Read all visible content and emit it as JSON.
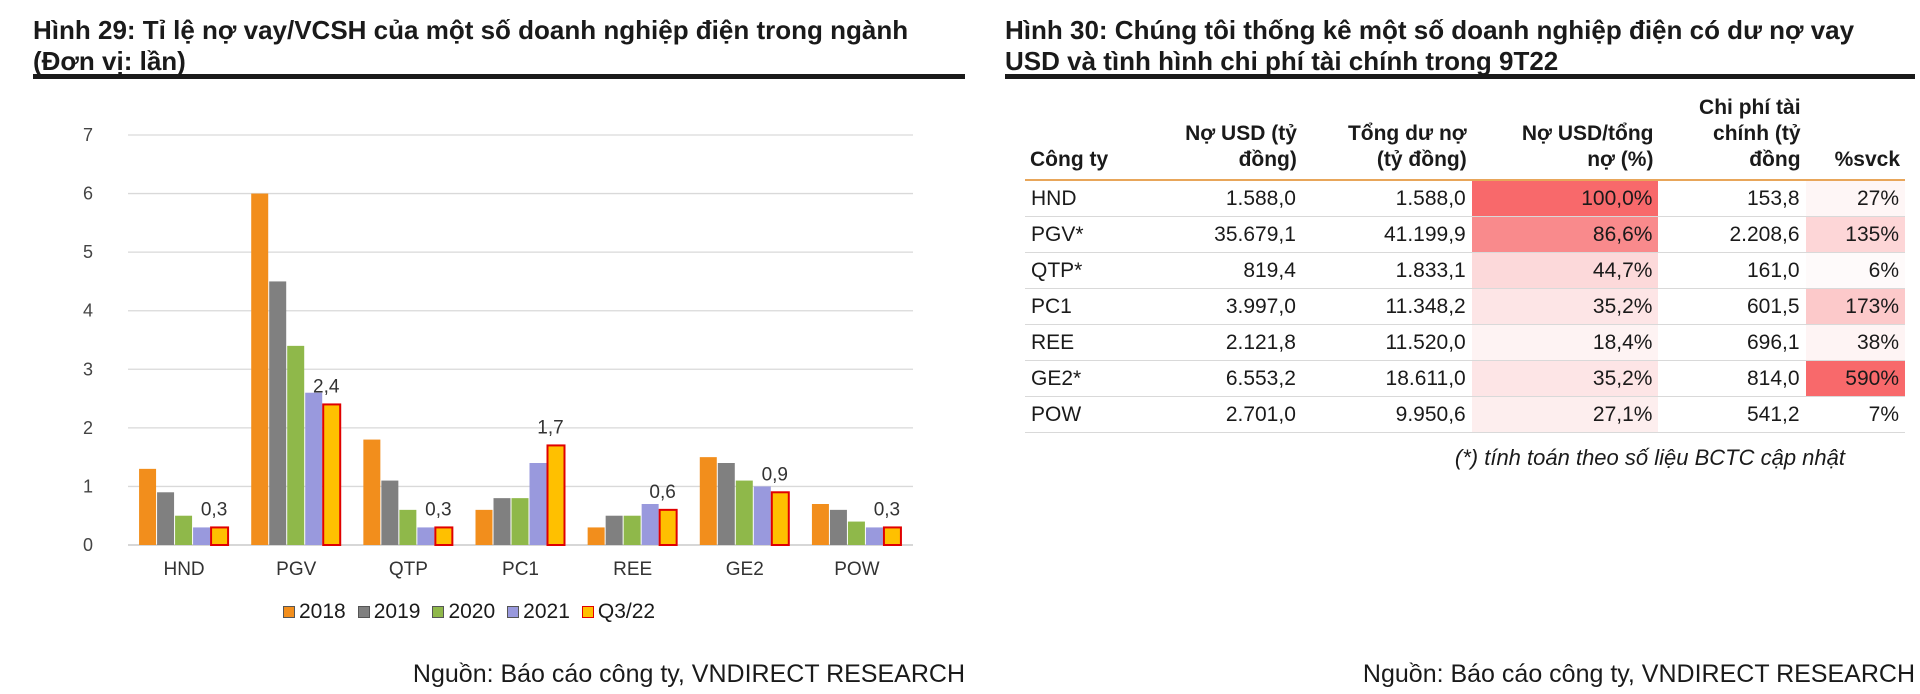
{
  "figure29": {
    "title_line1": "Hình 29: Tỉ lệ nợ vay/VCSH của một số doanh nghiệp điện trong ngành",
    "title_line2": "(Đơn vị: lần)",
    "source": "Nguồn: Báo cáo công ty, VNDIRECT RESEARCH"
  },
  "figure30": {
    "title_line1": "Hình 30: Chúng tôi thống kê một số doanh nghiệp điện có dư nợ vay",
    "title_line2": "USD và tình hình chi phí tài chính trong 9T22",
    "headers": {
      "company": "Công ty",
      "usd_debt_1": "Nợ USD (tỷ",
      "usd_debt_2": "đồng)",
      "total_debt_1": "Tổng dư nợ",
      "total_debt_2": "(tỷ đồng)",
      "ratio_1": "Nợ USD/tổng",
      "ratio_2": "nợ (%)",
      "fin_cost_1": "Chi phí tài",
      "fin_cost_2": "chính (tỷ",
      "fin_cost_3": "đồng",
      "yoy": "%svck"
    },
    "rows": [
      {
        "company": "HND",
        "usd_debt": "1.588,0",
        "total_debt": "1.588,0",
        "ratio": "100,0%",
        "fin_cost": "153,8",
        "yoy": "27%"
      },
      {
        "company": "PGV*",
        "usd_debt": "35.679,1",
        "total_debt": "41.199,9",
        "ratio": "86,6%",
        "fin_cost": "2.208,6",
        "yoy": "135%"
      },
      {
        "company": "QTP*",
        "usd_debt": "819,4",
        "total_debt": "1.833,1",
        "ratio": "44,7%",
        "fin_cost": "161,0",
        "yoy": "6%"
      },
      {
        "company": "PC1",
        "usd_debt": "3.997,0",
        "total_debt": "11.348,2",
        "ratio": "35,2%",
        "fin_cost": "601,5",
        "yoy": "173%"
      },
      {
        "company": "REE",
        "usd_debt": "2.121,8",
        "total_debt": "11.520,0",
        "ratio": "18,4%",
        "fin_cost": "696,1",
        "yoy": "38%"
      },
      {
        "company": "GE2*",
        "usd_debt": "6.553,2",
        "total_debt": "18.611,0",
        "ratio": "35,2%",
        "fin_cost": "814,0",
        "yoy": "590%"
      },
      {
        "company": "POW",
        "usd_debt": "2.701,0",
        "total_debt": "9.950,6",
        "ratio": "27,1%",
        "fin_cost": "541,2",
        "yoy": "7%"
      }
    ],
    "ratio_colors": [
      "#f8696b",
      "#f98a8c",
      "#fcd9da",
      "#fde5e6",
      "#fef3f3",
      "#fde5e6",
      "#fdeeee"
    ],
    "yoy_colors": [
      "#fef6f6",
      "#fdd6d7",
      "#fefafa",
      "#fcc9ca",
      "#fef4f4",
      "#f8696b",
      "#ffffff"
    ],
    "note": "(*) tính toán theo số liệu BCTC cập nhật",
    "source": "Nguồn: Báo cáo công ty, VNDIRECT RESEARCH"
  },
  "chart_data": {
    "type": "bar",
    "title": "Hình 29: Tỉ lệ nợ vay/VCSH của một số doanh nghiệp điện trong ngành (Đơn vị: lần)",
    "categories": [
      "HND",
      "PGV",
      "QTP",
      "PC1",
      "REE",
      "GE2",
      "POW"
    ],
    "ylim": [
      0,
      7
    ],
    "yticks": [
      0,
      1,
      2,
      3,
      4,
      5,
      6,
      7
    ],
    "grid": true,
    "legend_position": "bottom",
    "series": [
      {
        "name": "2018",
        "color": "#f28e1c",
        "values": [
          1.3,
          6.0,
          1.8,
          0.6,
          0.3,
          1.5,
          0.7
        ]
      },
      {
        "name": "2019",
        "color": "#808080",
        "values": [
          0.9,
          4.5,
          1.1,
          0.8,
          0.5,
          1.4,
          0.6
        ]
      },
      {
        "name": "2020",
        "color": "#8fb84a",
        "values": [
          0.5,
          3.4,
          0.6,
          0.8,
          0.5,
          1.1,
          0.4
        ]
      },
      {
        "name": "2021",
        "color": "#9999dd",
        "values": [
          0.3,
          2.6,
          0.3,
          1.4,
          0.7,
          1.0,
          0.3
        ]
      },
      {
        "name": "Q3/22",
        "color": "#ffc000",
        "border": "#e00000",
        "values": [
          0.3,
          2.4,
          0.3,
          1.7,
          0.6,
          0.9,
          0.3
        ]
      }
    ],
    "data_labels": [
      "0,3",
      "2,4",
      "0,3",
      "1,7",
      "0,6",
      "0,9",
      "0,3"
    ]
  }
}
